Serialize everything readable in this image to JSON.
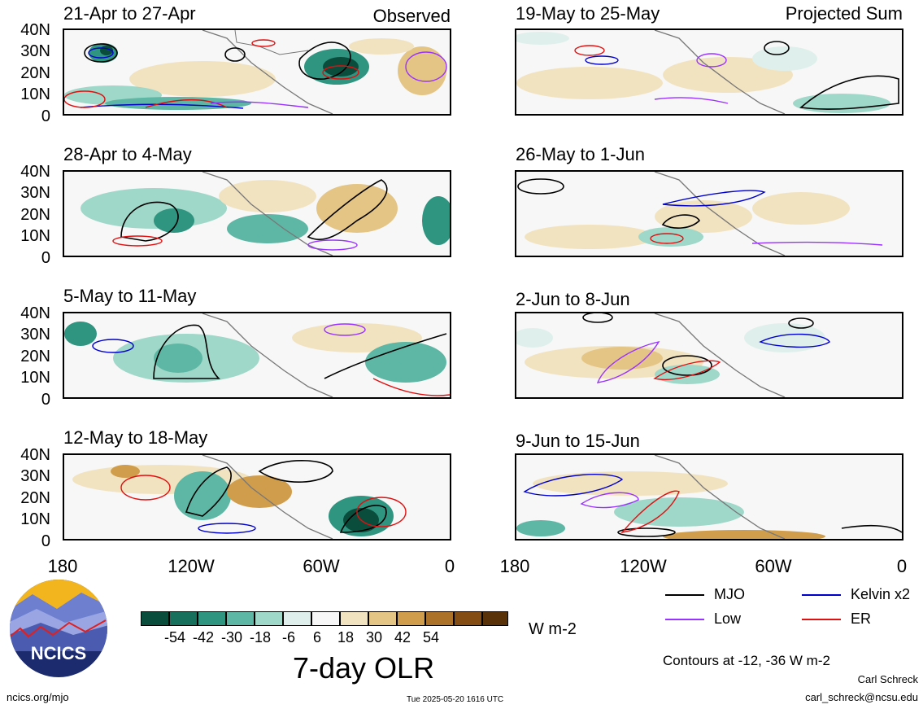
{
  "panels": [
    {
      "title": "21-Apr to 27-Apr",
      "tag": "Observed"
    },
    {
      "title": "19-May to 25-May",
      "tag": "Projected Sum"
    },
    {
      "title": "28-Apr to 4-May",
      "tag": ""
    },
    {
      "title": "26-May to 1-Jun",
      "tag": ""
    },
    {
      "title": "5-May to 11-May",
      "tag": ""
    },
    {
      "title": "2-Jun to 8-Jun",
      "tag": ""
    },
    {
      "title": "12-May to 18-May",
      "tag": ""
    },
    {
      "title": "9-Jun to 15-Jun",
      "tag": ""
    }
  ],
  "y_axis_labels": [
    "40N",
    "30N",
    "20N",
    "10N",
    "0"
  ],
  "x_axis_labels": [
    "180",
    "120W",
    "60W",
    "0"
  ],
  "colorbar": {
    "ticks": [
      "-54",
      "-42",
      "-30",
      "-18",
      "-6",
      "6",
      "18",
      "30",
      "42",
      "54"
    ],
    "colors": [
      "#0b4d3c",
      "#16705c",
      "#2f9480",
      "#5db7a4",
      "#9fd7c8",
      "#dff0ec",
      "#f7f7f7",
      "#f2e3c0",
      "#e4c585",
      "#cf9d4c",
      "#ad7229",
      "#844d13",
      "#5a320a"
    ],
    "units": "W m-2",
    "title": "7-day OLR"
  },
  "legend": {
    "items": [
      {
        "label": "MJO",
        "color": "#000000"
      },
      {
        "label": "Kelvin x2",
        "color": "#0000cc"
      },
      {
        "label": "Low",
        "color": "#9933ff"
      },
      {
        "label": "ER",
        "color": "#e01010"
      }
    ],
    "note": "Contours at -12, -36 W m-2"
  },
  "footer": {
    "logo_text": "NCICS",
    "site": "ncics.org/mjo",
    "timestamp": "Tue 2025-05-20 1616 UTC",
    "author": "Carl Schreck",
    "email": "carl_schreck@ncsu.edu"
  }
}
